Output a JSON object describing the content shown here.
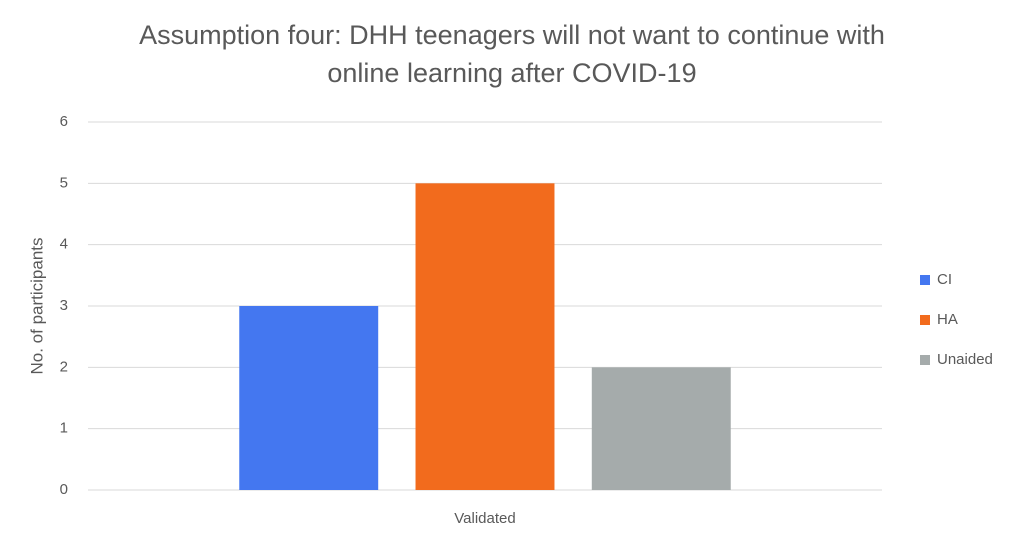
{
  "chart_data": {
    "type": "bar",
    "title": "Assumption four: DHH teenagers will not want to continue with online learning after COVID-19",
    "y_label": "No. of participants",
    "categories": [
      "Validated"
    ],
    "series": [
      {
        "name": "CI",
        "color": "#4477f0",
        "values": [
          3
        ]
      },
      {
        "name": "HA",
        "color": "#f26b1d",
        "values": [
          5
        ]
      },
      {
        "name": "Unaided",
        "color": "#a5abab",
        "values": [
          2
        ]
      }
    ],
    "ylim": [
      0,
      6
    ],
    "yticks": [
      0,
      1,
      2,
      3,
      4,
      5,
      6
    ],
    "grid": true,
    "legend": "right"
  }
}
